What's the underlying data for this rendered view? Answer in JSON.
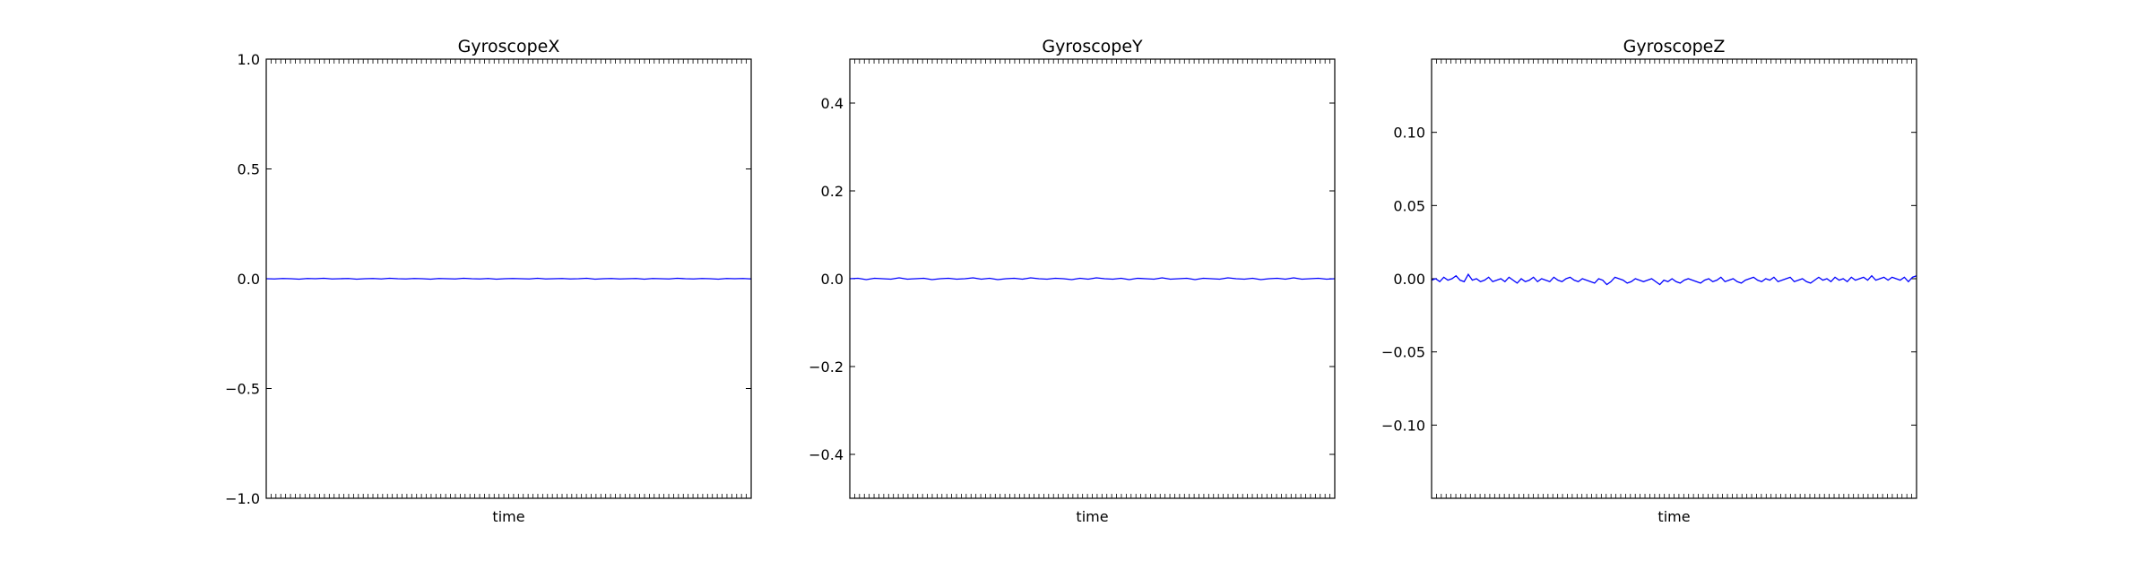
{
  "chart_data": [
    {
      "type": "line",
      "title": "GyroscopeX",
      "xlabel": "time",
      "ylabel": "",
      "ylim": [
        -1.0,
        1.0
      ],
      "yticks": [
        -1.0,
        -0.5,
        0.0,
        0.5,
        1.0
      ],
      "ytick_labels": [
        "−1.0",
        "−0.5",
        "0.0",
        "0.5",
        "1.0"
      ],
      "x_tick_labels_shown": false,
      "grid": false,
      "line_color": "#0000ff",
      "series": [
        {
          "values": [
            0.0,
            -0.001,
            0.001,
            0.0,
            -0.002,
            0.001,
            0.0,
            0.002,
            -0.001,
            0.0,
            0.001,
            -0.002,
            0.0,
            0.001,
            -0.001,
            0.002,
            0.0,
            -0.001,
            0.001,
            0.0,
            -0.002,
            0.001,
            0.0,
            -0.001,
            0.002,
            0.0,
            -0.001,
            0.001,
            -0.002,
            0.0,
            0.001,
            0.0,
            -0.001,
            0.002,
            -0.001,
            0.0,
            0.001,
            -0.001,
            0.0,
            0.002,
            -0.002,
            0.0,
            0.001,
            -0.001,
            0.0,
            0.001,
            -0.002,
            0.001,
            0.0,
            -0.001,
            0.002,
            0.0,
            -0.001,
            0.001,
            0.0,
            -0.002,
            0.001,
            0.0,
            0.001,
            -0.001
          ]
        }
      ]
    },
    {
      "type": "line",
      "title": "GyroscopeY",
      "xlabel": "time",
      "ylabel": "",
      "ylim": [
        -0.5,
        0.5
      ],
      "yticks": [
        -0.4,
        -0.2,
        0.0,
        0.2,
        0.4
      ],
      "ytick_labels": [
        "−0.4",
        "−0.2",
        "0.0",
        "0.2",
        "0.4"
      ],
      "x_tick_labels_shown": false,
      "grid": false,
      "line_color": "#0000ff",
      "series": [
        {
          "values": [
            0.0,
            0.001,
            -0.002,
            0.001,
            0.0,
            -0.001,
            0.002,
            -0.001,
            0.0,
            0.001,
            -0.002,
            0.0,
            0.001,
            -0.001,
            0.0,
            0.002,
            -0.001,
            0.001,
            -0.002,
            0.0,
            0.001,
            -0.001,
            0.002,
            0.0,
            -0.001,
            0.001,
            0.0,
            -0.002,
            0.001,
            -0.001,
            0.002,
            0.0,
            -0.001,
            0.001,
            -0.002,
            0.001,
            0.0,
            -0.001,
            0.002,
            -0.001,
            0.0,
            0.001,
            -0.002,
            0.001,
            0.0,
            -0.001,
            0.002,
            0.0,
            -0.001,
            0.001,
            -0.002,
            0.0,
            0.001,
            -0.001,
            0.002,
            -0.001,
            0.0,
            0.001,
            -0.001,
            0.0
          ]
        }
      ]
    },
    {
      "type": "line",
      "title": "GyroscopeZ",
      "xlabel": "time",
      "ylabel": "",
      "ylim": [
        -0.15,
        0.15
      ],
      "yticks": [
        -0.1,
        -0.05,
        0.0,
        0.05,
        0.1
      ],
      "ytick_labels": [
        "−0.10",
        "−0.05",
        "0.00",
        "0.05",
        "0.10"
      ],
      "x_tick_labels_shown": false,
      "grid": false,
      "line_color": "#0000ff",
      "series": [
        {
          "values": [
            -0.001,
            0.0,
            -0.002,
            0.001,
            -0.001,
            0.0,
            0.002,
            -0.001,
            -0.002,
            0.003,
            -0.001,
            0.0,
            -0.002,
            -0.001,
            0.001,
            -0.002,
            -0.001,
            0.0,
            -0.002,
            0.001,
            -0.001,
            -0.003,
            0.0,
            -0.002,
            -0.001,
            0.001,
            -0.002,
            0.0,
            -0.001,
            -0.002,
            0.001,
            -0.001,
            -0.002,
            0.0,
            0.001,
            -0.001,
            -0.002,
            0.0,
            -0.001,
            -0.002,
            -0.003,
            0.0,
            -0.001,
            -0.004,
            -0.002,
            0.001,
            0.0,
            -0.001,
            -0.003,
            -0.002,
            0.0,
            -0.001,
            -0.002,
            -0.001,
            0.0,
            -0.002,
            -0.004,
            -0.001,
            -0.002,
            0.0,
            -0.002,
            -0.003,
            -0.001,
            0.0,
            -0.001,
            -0.002,
            -0.003,
            -0.001,
            0.0,
            -0.002,
            -0.001,
            0.001,
            -0.002,
            -0.001,
            0.0,
            -0.002,
            -0.003,
            -0.001,
            0.0,
            0.001,
            -0.001,
            -0.002,
            0.0,
            -0.001,
            0.001,
            -0.002,
            -0.001,
            0.0,
            0.001,
            -0.002,
            -0.001,
            0.0,
            -0.002,
            -0.003,
            -0.001,
            0.001,
            -0.001,
            0.0,
            -0.002,
            0.001,
            -0.001,
            0.0,
            -0.002,
            0.001,
            -0.001,
            0.0,
            0.001,
            -0.001,
            0.002,
            -0.001,
            0.0,
            0.001,
            -0.001,
            0.001,
            0.0,
            -0.001,
            0.001,
            -0.002,
            0.001,
            0.002
          ]
        }
      ]
    }
  ]
}
